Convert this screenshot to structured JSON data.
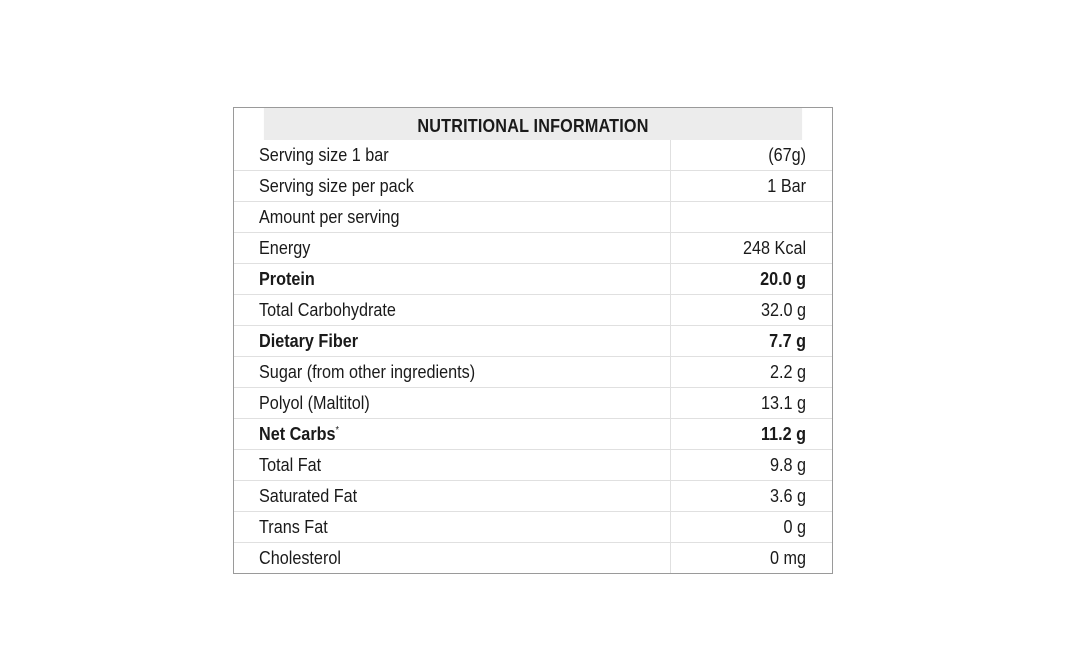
{
  "panel": {
    "title": "NUTRITIONAL INFORMATION",
    "rows": [
      {
        "label": "Serving size 1 bar",
        "value": "(67g)",
        "bold": false
      },
      {
        "label": "Serving size per pack",
        "value": "1 Bar",
        "bold": false
      },
      {
        "label": "Amount per serving",
        "value": "",
        "bold": false
      },
      {
        "label": "Energy",
        "value": "248 Kcal",
        "bold": false
      },
      {
        "label": "Protein",
        "value": "20.0 g",
        "bold": true
      },
      {
        "label": "Total Carbohydrate",
        "value": "32.0 g",
        "bold": false
      },
      {
        "label": "Dietary Fiber",
        "value": "7.7 g",
        "bold": true
      },
      {
        "label": "Sugar (from other ingredients)",
        "value": "2.2 g",
        "bold": false
      },
      {
        "label": "Polyol (Maltitol)",
        "value": "13.1 g",
        "bold": false
      },
      {
        "label": "Net Carbs",
        "label_mark": "*",
        "value": "11.2 g",
        "bold": true
      },
      {
        "label": "Total Fat",
        "value": "9.8 g",
        "bold": false
      },
      {
        "label": "Saturated Fat",
        "value": "3.6 g",
        "bold": false
      },
      {
        "label": "Trans Fat",
        "value": "0 g",
        "bold": false
      },
      {
        "label": "Cholesterol",
        "value": "0 mg",
        "bold": false
      }
    ]
  }
}
